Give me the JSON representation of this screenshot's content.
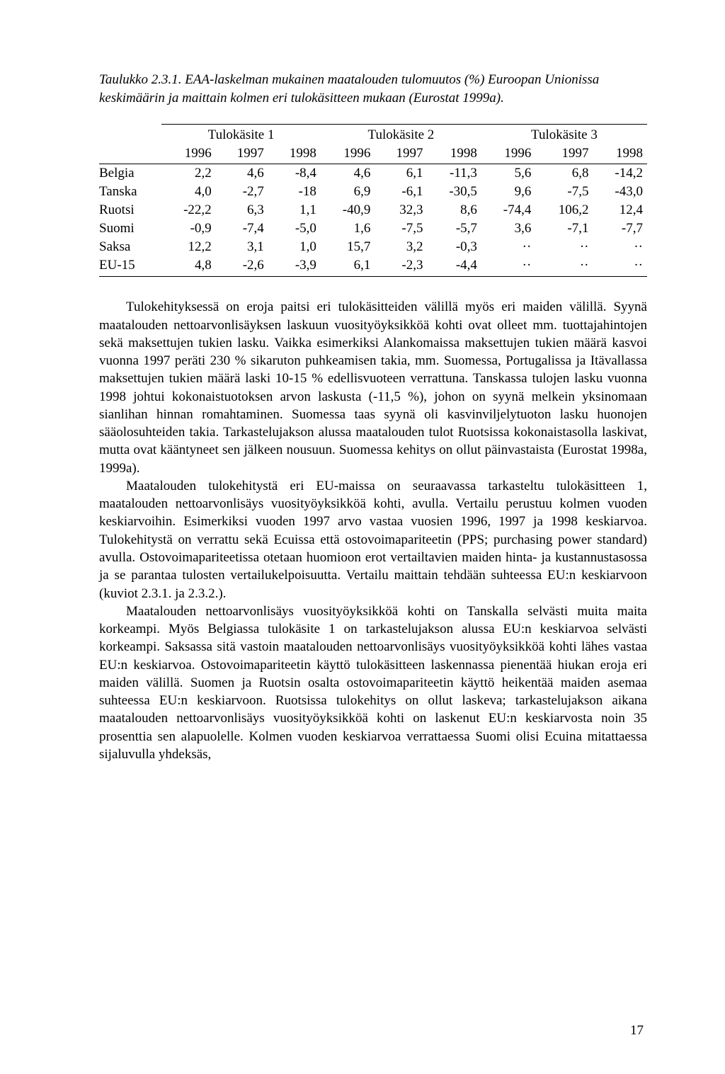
{
  "caption": "Taulukko 2.3.1. EAA-laskelman mukainen maatalouden tulomuutos (%) Euroopan Unionissa keskimäärin ja maittain kolmen eri tulokäsitteen mukaan (Eurostat 1999a).",
  "table": {
    "groups": [
      "Tulokäsite 1",
      "Tulokäsite 2",
      "Tulokäsite 3"
    ],
    "years": [
      "1996",
      "1997",
      "1998",
      "1996",
      "1997",
      "1998",
      "1996",
      "1997",
      "1998"
    ],
    "rows": [
      {
        "label": "Belgia",
        "cells": [
          "2,2",
          "4,6",
          "-8,4",
          "4,6",
          "6,1",
          "-11,3",
          "5,6",
          "6,8",
          "-14,2"
        ]
      },
      {
        "label": "Tanska",
        "cells": [
          "4,0",
          "-2,7",
          "-18",
          "6,9",
          "-6,1",
          "-30,5",
          "9,6",
          "-7,5",
          "-43,0"
        ]
      },
      {
        "label": "Ruotsi",
        "cells": [
          "-22,2",
          "6,3",
          "1,1",
          "-40,9",
          "32,3",
          "8,6",
          "-74,4",
          "106,2",
          "12,4"
        ]
      },
      {
        "label": "Suomi",
        "cells": [
          "-0,9",
          "-7,4",
          "-5,0",
          "1,6",
          "-7,5",
          "-5,7",
          "3,6",
          "-7,1",
          "-7,7"
        ]
      },
      {
        "label": "Saksa",
        "cells": [
          "12,2",
          "3,1",
          "1,0",
          "15,7",
          "3,2",
          "-0,3",
          "··",
          "··",
          "··"
        ]
      },
      {
        "label": "EU-15",
        "cells": [
          "4,8",
          "-2,6",
          "-3,9",
          "6,1",
          "-2,3",
          "-4,4",
          "··",
          "··",
          "··"
        ]
      }
    ]
  },
  "paragraphs": [
    "Tulokehityksessä on eroja paitsi eri tulokäsitteiden välillä myös eri maiden välillä. Syynä maatalouden nettoarvonlisäyksen laskuun vuosityöyksikköä kohti ovat olleet mm. tuottajahintojen sekä maksettujen tukien lasku. Vaikka esimerkiksi Alankomaissa maksettujen tukien määrä kasvoi vuonna 1997 peräti 230 % sikaruton puhkeamisen takia, mm. Suomessa, Portugalissa ja Itävallassa maksettujen tukien määrä laski 10-15 % edellisvuoteen verrattuna. Tanskassa tulojen lasku vuonna 1998 johtui kokonaistuotoksen arvon laskusta (-11,5 %), johon on syynä melkein yksinomaan sianlihan hinnan romahtaminen. Suomessa taas syynä oli kasvinviljelytuoton lasku huonojen sääolosuhteiden takia. Tarkastelujakson alussa maatalouden tulot Ruotsissa kokonaistasolla laskivat, mutta ovat kääntyneet sen jälkeen nousuun. Suomessa kehitys on ollut päinvastaista (Eurostat 1998a, 1999a).",
    "Maatalouden tulokehitystä eri EU-maissa on seuraavassa tarkasteltu tulokäsitteen 1, maatalouden nettoarvonlisäys vuosityöyksikköä kohti, avulla. Vertailu perustuu kolmen vuoden keskiarvoihin. Esimerkiksi vuoden 1997 arvo vastaa vuosien 1996, 1997 ja 1998 keskiarvoa. Tulokehitystä on verrattu sekä Ecuissa että ostovoimapariteetin (PPS; purchasing power standard) avulla. Ostovoimapariteetissa otetaan huomioon erot vertailtavien maiden hinta- ja kustannustasossa ja se parantaa tulosten vertailukelpoisuutta. Vertailu maittain tehdään suhteessa EU:n keskiarvoon (kuviot 2.3.1. ja 2.3.2.).",
    "Maatalouden nettoarvonlisäys vuosityöyksikköä kohti on Tanskalla selvästi muita maita korkeampi. Myös Belgiassa tulokäsite 1 on tarkastelujakson alussa EU:n keskiarvoa selvästi korkeampi. Saksassa sitä vastoin maatalouden nettoarvonlisäys vuosityöyksikköä kohti lähes vastaa EU:n keskiarvoa. Ostovoimapariteetin käyttö tulokäsitteen laskennassa pienentää hiukan eroja eri maiden välillä. Suomen ja Ruotsin osalta ostovoimapariteetin käyttö heikentää maiden asemaa suhteessa EU:n keskiarvoon. Ruotsissa tulokehitys on ollut laskeva; tarkastelujakson aikana maatalouden nettoarvonlisäys vuosityöyksikköä kohti on laskenut EU:n keskiarvosta noin 35 prosenttia sen alapuolelle. Kolmen vuoden keskiarvoa verrattaessa Suomi olisi Ecuina mitattaessa sijaluvulla yhdeksäs,"
  ],
  "pageNumber": "17"
}
